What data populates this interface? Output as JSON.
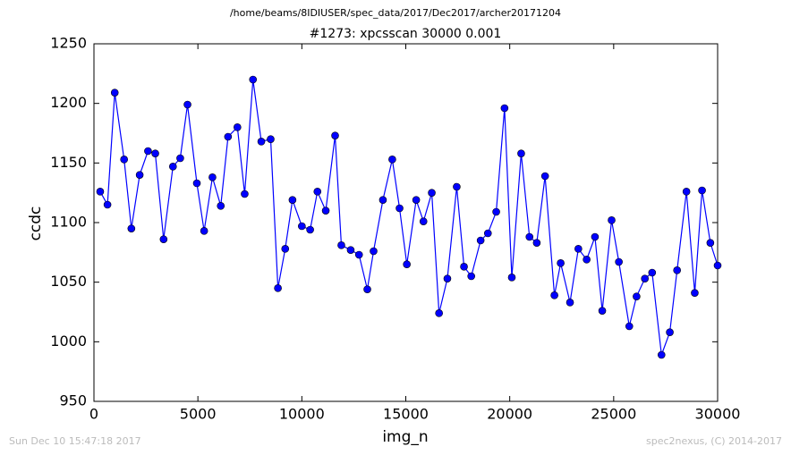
{
  "chart_data": {
    "type": "line",
    "header": "/home/beams/8IDIUSER/spec_data/2017/Dec2017/archer20171204",
    "title": "#1273: xpcsscan 30000 0.001",
    "xlabel": "img_n",
    "ylabel": "ccdc",
    "footer_left": "Sun Dec 10 15:47:18 2017",
    "footer_right": "spec2nexus, (C) 2014-2017",
    "x": [
      300,
      650,
      1000,
      1450,
      1800,
      2200,
      2600,
      2950,
      3350,
      3800,
      4150,
      4500,
      4950,
      5300,
      5700,
      6100,
      6450,
      6900,
      7250,
      7650,
      8050,
      8500,
      8850,
      9200,
      9550,
      10000,
      10400,
      10750,
      11150,
      11600,
      11900,
      12350,
      12750,
      13150,
      13450,
      13900,
      14350,
      14700,
      15050,
      15500,
      15850,
      16250,
      16600,
      17000,
      17450,
      17800,
      18150,
      18600,
      18950,
      19350,
      19750,
      20100,
      20550,
      20950,
      21300,
      21700,
      22150,
      22450,
      22900,
      23300,
      23700,
      24100,
      24450,
      24900,
      25250,
      25750,
      26100,
      26500,
      26850,
      27300,
      27700,
      28050,
      28500,
      28900,
      29250,
      29650,
      30000
    ],
    "series": [
      {
        "name": "ccdc",
        "color": "#0000ff",
        "values": [
          1126,
          1115,
          1209,
          1153,
          1095,
          1140,
          1160,
          1158,
          1086,
          1147,
          1154,
          1199,
          1133,
          1093,
          1138,
          1114,
          1172,
          1180,
          1124,
          1220,
          1168,
          1170,
          1045,
          1078,
          1119,
          1097,
          1094,
          1126,
          1110,
          1173,
          1081,
          1077,
          1073,
          1044,
          1076,
          1119,
          1153,
          1112,
          1065,
          1119,
          1101,
          1125,
          1024,
          1053,
          1130,
          1063,
          1055,
          1085,
          1091,
          1109,
          1196,
          1054,
          1158,
          1088,
          1083,
          1139,
          1039,
          1066,
          1033,
          1078,
          1069,
          1088,
          1026,
          1102,
          1067,
          1013,
          1038,
          1053,
          1058,
          989,
          1008,
          1060,
          1126,
          1041,
          1127,
          1083,
          1064
        ]
      }
    ],
    "xlim": [
      0,
      30000
    ],
    "ylim": [
      950,
      1250
    ],
    "xticks": [
      0,
      5000,
      10000,
      15000,
      20000,
      25000,
      30000
    ],
    "yticks": [
      950,
      1000,
      1050,
      1100,
      1150,
      1200,
      1250
    ]
  }
}
